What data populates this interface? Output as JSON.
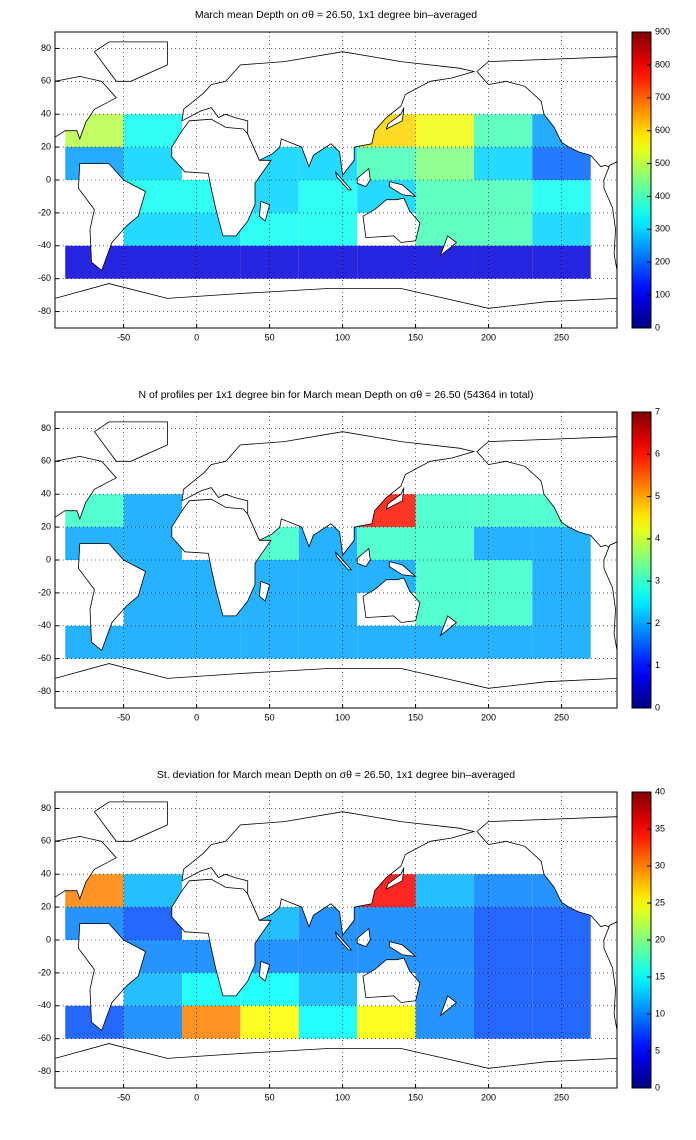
{
  "chart_data": [
    {
      "type": "heatmap",
      "title": "March mean Depth on σθ = 26.50, 1x1 degree bin–averaged",
      "x": [
        -70,
        -30,
        10,
        50,
        90,
        130,
        170,
        210,
        250
      ],
      "y": [
        30,
        10,
        -10,
        -30,
        -50
      ],
      "values": [
        [
          500,
          350,
          null,
          null,
          null,
          600,
          550,
          400,
          250
        ],
        [
          250,
          300,
          null,
          300,
          300,
          400,
          450,
          300,
          200
        ],
        [
          null,
          350,
          350,
          300,
          350,
          300,
          400,
          400,
          350
        ],
        [
          null,
          300,
          300,
          350,
          350,
          null,
          400,
          400,
          300
        ],
        [
          80,
          80,
          80,
          80,
          80,
          80,
          80,
          80,
          80
        ]
      ],
      "xlim": [
        -97,
        288
      ],
      "ylim": [
        -90,
        90
      ],
      "xticks": [
        -50,
        0,
        50,
        100,
        150,
        200,
        250
      ],
      "yticks": [
        -80,
        -60,
        -40,
        -20,
        0,
        20,
        40,
        60,
        80
      ],
      "grid": true,
      "colormap": "jet",
      "clim": [
        0,
        900
      ],
      "cticks": [
        0,
        100,
        200,
        300,
        400,
        500,
        600,
        700,
        800,
        900
      ]
    },
    {
      "type": "heatmap",
      "title": "N of profiles per 1x1 degree bin for March mean Depth on σθ = 26.50 (54364 in total)",
      "x": [
        -70,
        -30,
        10,
        50,
        90,
        130,
        170,
        210,
        250
      ],
      "y": [
        30,
        10,
        -10,
        -30,
        -50
      ],
      "values": [
        [
          3,
          2,
          null,
          null,
          null,
          6,
          3,
          3,
          3
        ],
        [
          2,
          2,
          null,
          3,
          2,
          3,
          3,
          2,
          2
        ],
        [
          null,
          2,
          2,
          2,
          2,
          2,
          3,
          3,
          2
        ],
        [
          null,
          2,
          2,
          2,
          2,
          null,
          3,
          3,
          2
        ],
        [
          2,
          2,
          2,
          2,
          2,
          2,
          2,
          2,
          2
        ]
      ],
      "xlim": [
        -97,
        288
      ],
      "ylim": [
        -90,
        90
      ],
      "xticks": [
        -50,
        0,
        50,
        100,
        150,
        200,
        250
      ],
      "yticks": [
        -80,
        -60,
        -40,
        -20,
        0,
        20,
        40,
        60,
        80
      ],
      "grid": true,
      "colormap": "jet",
      "clim": [
        0,
        7
      ],
      "cticks": [
        0,
        1,
        2,
        3,
        4,
        5,
        6,
        7
      ]
    },
    {
      "type": "heatmap",
      "title": "St. deviation for March mean Depth on σθ = 26.50, 1x1 degree bin–averaged",
      "x": [
        -70,
        -30,
        10,
        50,
        90,
        130,
        170,
        210,
        250
      ],
      "y": [
        30,
        10,
        -10,
        -30,
        -50
      ],
      "values": [
        [
          30,
          12,
          null,
          null,
          null,
          35,
          12,
          10,
          10
        ],
        [
          10,
          8,
          null,
          12,
          10,
          10,
          10,
          8,
          8
        ],
        [
          null,
          10,
          10,
          10,
          10,
          10,
          10,
          8,
          8
        ],
        [
          null,
          12,
          15,
          15,
          12,
          null,
          10,
          8,
          8
        ],
        [
          8,
          10,
          30,
          25,
          15,
          25,
          10,
          8,
          8
        ]
      ],
      "xlim": [
        -97,
        288
      ],
      "ylim": [
        -90,
        90
      ],
      "xticks": [
        -50,
        0,
        50,
        100,
        150,
        200,
        250
      ],
      "yticks": [
        -80,
        -60,
        -40,
        -20,
        0,
        20,
        40,
        60,
        80
      ],
      "grid": true,
      "colormap": "jet",
      "clim": [
        0,
        40
      ],
      "cticks": [
        0,
        5,
        10,
        15,
        20,
        25,
        30,
        35,
        40
      ]
    }
  ]
}
